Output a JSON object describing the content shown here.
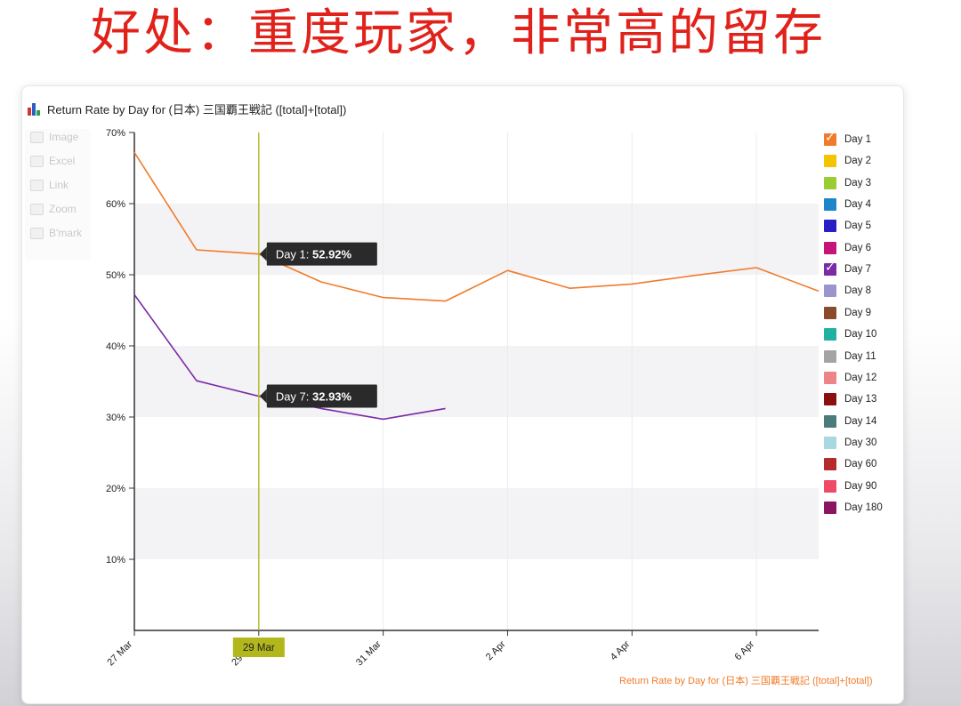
{
  "slide": {
    "title": "好处：重度玩家，非常高的留存"
  },
  "panel": {
    "title": "Return Rate by Day for (日本) 三国覇王戦記 ([total]+[total])",
    "footnote": "Return Rate by Day for (日本) 三国覇王戦記 ([total]+[total])"
  },
  "toolbar": {
    "items": [
      {
        "label": "Image",
        "icon": "image-icon"
      },
      {
        "label": "Excel",
        "icon": "excel-icon"
      },
      {
        "label": "Link",
        "icon": "link-icon"
      },
      {
        "label": "Zoom",
        "icon": "zoom-icon"
      },
      {
        "label": "B'mark",
        "icon": "bookmark-icon"
      }
    ]
  },
  "legend": {
    "items": [
      {
        "label": "Day 1",
        "color": "#f07b2a",
        "checked": true
      },
      {
        "label": "Day 2",
        "color": "#f5c400",
        "checked": false
      },
      {
        "label": "Day 3",
        "color": "#9acd32",
        "checked": false
      },
      {
        "label": "Day 4",
        "color": "#1c86c8",
        "checked": false
      },
      {
        "label": "Day 5",
        "color": "#2a1fc4",
        "checked": false
      },
      {
        "label": "Day 6",
        "color": "#c4157a",
        "checked": false
      },
      {
        "label": "Day 7",
        "color": "#7b2aa8",
        "checked": true
      },
      {
        "label": "Day 8",
        "color": "#9a95cc",
        "checked": false
      },
      {
        "label": "Day 9",
        "color": "#8b4a2a",
        "checked": false
      },
      {
        "label": "Day 10",
        "color": "#22b0a0",
        "checked": false
      },
      {
        "label": "Day 11",
        "color": "#a4a4a4",
        "checked": false
      },
      {
        "label": "Day 12",
        "color": "#ee8488",
        "checked": false
      },
      {
        "label": "Day 13",
        "color": "#8b0f0f",
        "checked": false
      },
      {
        "label": "Day 14",
        "color": "#4a7c7c",
        "checked": false
      },
      {
        "label": "Day 30",
        "color": "#a8d8e0",
        "checked": false
      },
      {
        "label": "Day 60",
        "color": "#b52a2a",
        "checked": false
      },
      {
        "label": "Day 90",
        "color": "#ef4a68",
        "checked": false
      },
      {
        "label": "Day 180",
        "color": "#8b1560",
        "checked": false
      }
    ]
  },
  "chart_data": {
    "type": "line",
    "x_tick_labels": [
      "27 Mar",
      "29 Mar",
      "31 Mar",
      "2 Apr",
      "4 Apr",
      "6 Apr"
    ],
    "x_tick_positions": [
      0,
      2,
      4,
      6,
      8,
      10
    ],
    "xlim": [
      0,
      11
    ],
    "ylim": [
      0,
      70
    ],
    "y_ticks": [
      10,
      20,
      30,
      40,
      50,
      60,
      70
    ],
    "y_tick_labels": [
      "10%",
      "20%",
      "30%",
      "40%",
      "50%",
      "60%",
      "70%"
    ],
    "series": [
      {
        "name": "Day 1",
        "color": "#f07b2a",
        "x": [
          0,
          1,
          2,
          3,
          4,
          5,
          6,
          7,
          8,
          9,
          10,
          11
        ],
        "y": [
          67.2,
          53.5,
          52.92,
          49.0,
          46.8,
          46.3,
          50.6,
          48.1,
          48.7,
          49.9,
          51.0,
          47.7
        ]
      },
      {
        "name": "Day 7",
        "color": "#7b2aa8",
        "x": [
          0,
          1,
          2,
          3,
          4,
          5
        ],
        "y": [
          47.2,
          35.1,
          32.93,
          31.2,
          29.7,
          31.2
        ]
      }
    ],
    "crosshair": {
      "x": 2,
      "label": "29 Mar"
    },
    "tooltips": [
      {
        "series": "Day 1",
        "prefix": "Day 1: ",
        "value": "52.92%"
      },
      {
        "series": "Day 7",
        "prefix": "Day 7: ",
        "value": "32.93%"
      }
    ],
    "grid": "alternating-bands",
    "legend_position": "right"
  }
}
